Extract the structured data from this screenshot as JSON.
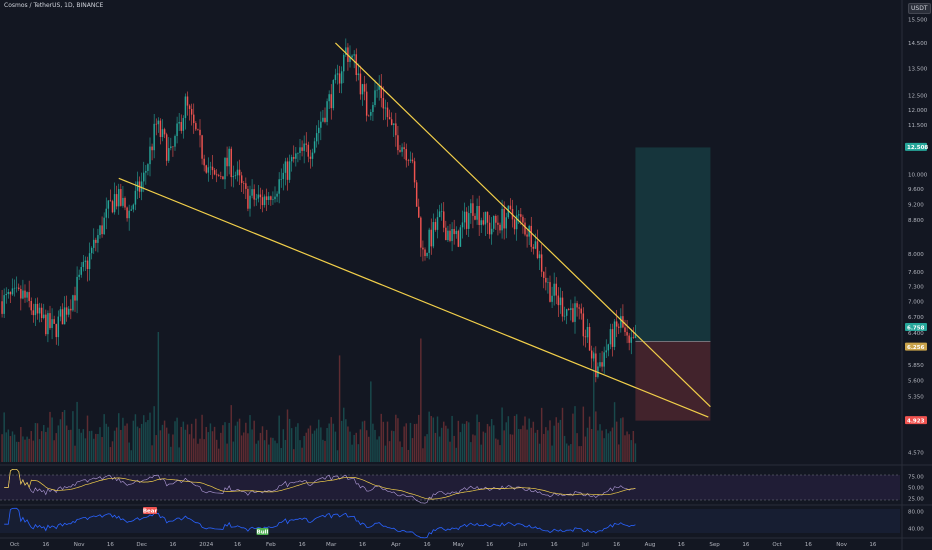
{
  "header": {
    "title": "Cosmos / TetherUS, 1D, BINANCE",
    "quote_currency": "USDT"
  },
  "chart_data": {
    "type": "candlestick",
    "instrument": "Cosmos / TetherUS",
    "interval": "1D",
    "exchange": "BINANCE",
    "y_scale": "log",
    "ylim": [
      4.5,
      16.0
    ],
    "price_ticks": [
      "15.500",
      "14.500",
      "13.500",
      "12.500",
      "12.000",
      "11.500",
      "10.800",
      "10.000",
      "9.600",
      "9.200",
      "8.800",
      "8.000",
      "7.600",
      "7.300",
      "7.000",
      "6.700",
      "6.400",
      "5.850",
      "5.600",
      "5.350",
      "4.570"
    ],
    "x_ticks": [
      "Oct",
      "16",
      "Nov",
      "16",
      "Dec",
      "16",
      "2024",
      "16",
      "Feb",
      "16",
      "Mar",
      "16",
      "Apr",
      "16",
      "May",
      "16",
      "Jun",
      "16",
      "Jul",
      "16",
      "Aug",
      "16",
      "Sep",
      "16",
      "Oct",
      "16",
      "Nov",
      "16"
    ],
    "price_path": [
      {
        "date": "2023-09-25",
        "close": 7.0
      },
      {
        "date": "2023-10-05",
        "close": 7.1
      },
      {
        "date": "2023-10-12",
        "close": 6.7
      },
      {
        "date": "2023-10-20",
        "close": 6.45
      },
      {
        "date": "2023-10-30",
        "close": 7.2
      },
      {
        "date": "2023-11-10",
        "close": 8.4
      },
      {
        "date": "2023-11-18",
        "close": 9.4
      },
      {
        "date": "2023-11-25",
        "close": 9.0
      },
      {
        "date": "2023-12-02",
        "close": 9.9
      },
      {
        "date": "2023-12-08",
        "close": 11.5
      },
      {
        "date": "2023-12-15",
        "close": 10.5
      },
      {
        "date": "2023-12-22",
        "close": 12.2
      },
      {
        "date": "2023-12-28",
        "close": 11.0
      },
      {
        "date": "2024-01-05",
        "close": 9.8
      },
      {
        "date": "2024-01-12",
        "close": 10.4
      },
      {
        "date": "2024-01-20",
        "close": 9.4
      },
      {
        "date": "2024-01-28",
        "close": 9.3
      },
      {
        "date": "2024-02-05",
        "close": 9.8
      },
      {
        "date": "2024-02-12",
        "close": 10.4
      },
      {
        "date": "2024-02-20",
        "close": 10.8
      },
      {
        "date": "2024-02-27",
        "close": 12.0
      },
      {
        "date": "2024-03-04",
        "close": 13.0
      },
      {
        "date": "2024-03-08",
        "close": 14.2
      },
      {
        "date": "2024-03-13",
        "close": 13.6
      },
      {
        "date": "2024-03-18",
        "close": 12.0
      },
      {
        "date": "2024-03-24",
        "close": 12.8
      },
      {
        "date": "2024-03-30",
        "close": 11.3
      },
      {
        "date": "2024-04-08",
        "close": 10.6
      },
      {
        "date": "2024-04-14",
        "close": 8.0
      },
      {
        "date": "2024-04-22",
        "close": 8.8
      },
      {
        "date": "2024-04-30",
        "close": 8.3
      },
      {
        "date": "2024-05-08",
        "close": 9.2
      },
      {
        "date": "2024-05-16",
        "close": 8.6
      },
      {
        "date": "2024-05-24",
        "close": 8.9
      },
      {
        "date": "2024-05-30",
        "close": 8.8
      },
      {
        "date": "2024-06-06",
        "close": 8.4
      },
      {
        "date": "2024-06-13",
        "close": 7.3
      },
      {
        "date": "2024-06-20",
        "close": 6.9
      },
      {
        "date": "2024-06-26",
        "close": 6.8
      },
      {
        "date": "2024-07-02",
        "close": 6.3
      },
      {
        "date": "2024-07-06",
        "close": 5.75
      },
      {
        "date": "2024-07-12",
        "close": 6.2
      },
      {
        "date": "2024-07-18",
        "close": 6.6
      },
      {
        "date": "2024-07-22",
        "close": 6.1
      },
      {
        "date": "2024-07-25",
        "close": 6.25
      }
    ],
    "annotations": {
      "upper_trendline": [
        {
          "date": "2024-03-03",
          "price": 14.5
        },
        {
          "date": "2024-08-30",
          "price": 5.2
        }
      ],
      "lower_trendline": [
        {
          "date": "2023-11-20",
          "price": 9.9
        },
        {
          "date": "2024-08-29",
          "price": 5.05
        }
      ],
      "position": {
        "entry": 6.25,
        "target": 10.8,
        "stop": 5.0
      }
    },
    "price_labels": [
      {
        "text": "12.508",
        "color": "#26a69a"
      },
      {
        "text": "6.758",
        "color": "#26a69a"
      },
      {
        "text": "6.256",
        "color": "#c8a24a"
      },
      {
        "text": "4.923",
        "color": "#ef5350"
      }
    ],
    "volume_ylim": [
      0,
      100
    ],
    "indicators": [
      {
        "name": "RSI",
        "ticks": [
          "75.00",
          "50.00",
          "25.00"
        ],
        "bands": [
          70,
          30
        ]
      },
      {
        "name": "Oscillator",
        "ticks": [
          "80.00",
          "40.00"
        ],
        "labels": [
          {
            "text": "Bear",
            "color": "#ef5350"
          },
          {
            "text": "Bull",
            "color": "#4caf50"
          }
        ]
      }
    ]
  },
  "colors": {
    "up": "#26a69a",
    "down": "#ef5350",
    "trendline": "#f2cf4a",
    "background": "#131722",
    "rsi_band": "#2a2145",
    "osc_line": "#2962ff"
  }
}
